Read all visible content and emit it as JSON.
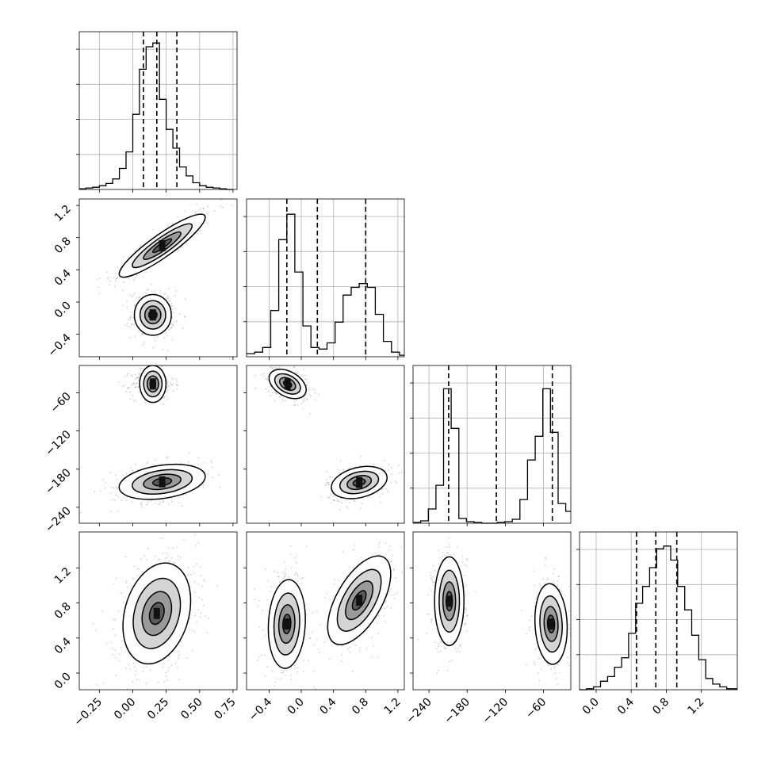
{
  "chart_data": {
    "type": "corner",
    "title": "",
    "n_parameters": 4,
    "colors": {
      "ink": "#000000",
      "grid": "#b0b0b0",
      "background": "#ffffff"
    },
    "grid": true,
    "parameters": [
      {
        "range": [
          -0.4,
          0.78
        ],
        "ticks": [
          "−0.25",
          "0.00",
          "0.25",
          "0.50",
          "0.75"
        ],
        "tick_values": [
          -0.25,
          0.0,
          0.25,
          0.5,
          0.75
        ]
      },
      {
        "range": [
          -0.68,
          1.28
        ],
        "ticks": [
          "−0.4",
          "0.0",
          "0.4",
          "0.8",
          "1.2"
        ],
        "tick_values": [
          -0.4,
          0.0,
          0.4,
          0.8,
          1.2
        ]
      },
      {
        "range": [
          -265,
          -17
        ],
        "ticks": [
          "−240",
          "−180",
          "−120",
          "−60"
        ],
        "tick_values": [
          -240,
          -180,
          -120,
          -60
        ]
      },
      {
        "range": [
          -0.19,
          1.61
        ],
        "ticks": [
          "0.0",
          "0.4",
          "0.8",
          "1.2"
        ],
        "tick_values": [
          0.0,
          0.4,
          0.8,
          1.2
        ]
      }
    ],
    "histograms": [
      {
        "param": 0,
        "bins": [
          -0.4,
          -0.35,
          -0.3,
          -0.25,
          -0.2,
          -0.15,
          -0.1,
          -0.05,
          0.0,
          0.05,
          0.1,
          0.15,
          0.2,
          0.25,
          0.3,
          0.35,
          0.4,
          0.45,
          0.5,
          0.55,
          0.6,
          0.65,
          0.7,
          0.75
        ],
        "counts": [
          1,
          2,
          3,
          5,
          8,
          14,
          28,
          50,
          100,
          160,
          190,
          195,
          120,
          80,
          55,
          30,
          18,
          9,
          5,
          3,
          2,
          1,
          0
        ],
        "quantile_lines": [
          0.08,
          0.18,
          0.33
        ],
        "ymax": 200
      },
      {
        "param": 1,
        "bins": [
          -0.68,
          -0.58,
          -0.48,
          -0.38,
          -0.28,
          -0.18,
          -0.08,
          0.02,
          0.12,
          0.22,
          0.32,
          0.42,
          0.52,
          0.62,
          0.72,
          0.82,
          0.92,
          1.02,
          1.12,
          1.22,
          1.28
        ],
        "counts": [
          4,
          6,
          12,
          60,
          152,
          185,
          110,
          40,
          12,
          10,
          18,
          45,
          80,
          90,
          95,
          90,
          55,
          20,
          6,
          2
        ],
        "quantile_lines": [
          -0.18,
          0.2,
          0.8
        ],
        "ymax": 195
      },
      {
        "param": 2,
        "bins": [
          -265,
          -253,
          -241,
          -229,
          -217,
          -205,
          -193,
          -181,
          -169,
          -157,
          -145,
          -133,
          -121,
          -109,
          -97,
          -85,
          -73,
          -61,
          -49,
          -37,
          -25,
          -17
        ],
        "counts": [
          1,
          3,
          18,
          48,
          170,
          120,
          6,
          2,
          1,
          0,
          0,
          1,
          2,
          5,
          30,
          80,
          110,
          170,
          115,
          25,
          15
        ],
        "quantile_lines": [
          -209,
          -134,
          -46
        ],
        "ymax": 190
      },
      {
        "param": 3,
        "bins": [
          -0.19,
          -0.11,
          -0.03,
          0.05,
          0.13,
          0.21,
          0.29,
          0.37,
          0.45,
          0.53,
          0.61,
          0.69,
          0.77,
          0.85,
          0.93,
          1.01,
          1.09,
          1.17,
          1.25,
          1.33,
          1.41,
          1.49,
          1.61
        ],
        "counts": [
          0,
          1,
          3,
          9,
          14,
          24,
          34,
          60,
          92,
          110,
          130,
          150,
          153,
          138,
          110,
          85,
          58,
          32,
          12,
          6,
          3,
          1
        ],
        "quantile_lines": [
          0.46,
          0.68,
          0.92
        ],
        "ymax": 160
      }
    ],
    "blobs": [
      {
        "px": 0,
        "py": 1,
        "cx": 0.22,
        "cy": 0.7,
        "sx": 0.14,
        "sy": 0.17,
        "rho": 0.9,
        "w": 0.5
      },
      {
        "px": 0,
        "py": 1,
        "cx": 0.15,
        "cy": -0.16,
        "sx": 0.06,
        "sy": 0.11,
        "rho": 0.0,
        "w": 0.5
      },
      {
        "px": 0,
        "py": 2,
        "cx": 0.15,
        "cy": -46,
        "sx": 0.06,
        "sy": 9,
        "rho": 0.0,
        "w": 0.5
      },
      {
        "px": 0,
        "py": 2,
        "cx": 0.22,
        "cy": -200,
        "sx": 0.14,
        "sy": 12,
        "rho": 0.3,
        "w": 0.5
      },
      {
        "px": 0,
        "py": 3,
        "cx": 0.18,
        "cy": 0.68,
        "sx": 0.11,
        "sy": 0.25,
        "rho": 0.25,
        "w": 1.0
      },
      {
        "px": 1,
        "py": 2,
        "cx": -0.17,
        "cy": -46,
        "sx": 0.1,
        "sy": 10,
        "rho": -0.4,
        "w": 0.5
      },
      {
        "px": 1,
        "py": 2,
        "cx": 0.72,
        "cy": -201,
        "sx": 0.15,
        "sy": 11,
        "rho": 0.3,
        "w": 0.5
      },
      {
        "px": 1,
        "py": 3,
        "cx": -0.18,
        "cy": 0.56,
        "sx": 0.1,
        "sy": 0.22,
        "rho": 0.1,
        "w": 0.5
      },
      {
        "px": 1,
        "py": 3,
        "cx": 0.72,
        "cy": 0.83,
        "sx": 0.17,
        "sy": 0.22,
        "rho": 0.6,
        "w": 0.5
      },
      {
        "px": 2,
        "py": 3,
        "cx": -208,
        "cy": 0.82,
        "sx": 10,
        "sy": 0.22,
        "rho": 0.0,
        "w": 0.5
      },
      {
        "px": 2,
        "py": 3,
        "cx": -48,
        "cy": 0.56,
        "sx": 11,
        "sy": 0.2,
        "rho": -0.1,
        "w": 0.5
      }
    ]
  }
}
